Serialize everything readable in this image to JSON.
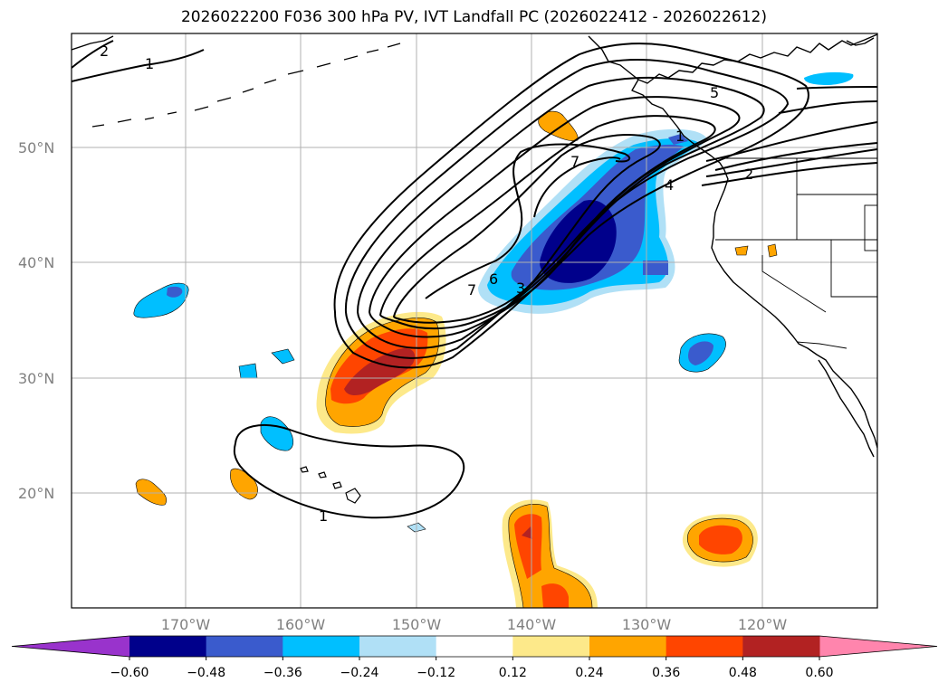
{
  "title": "2026022200 F036 300 hPa PV, IVT Landfall PC (2026022412 - 2026022612)",
  "map": {
    "projection": "PlateCarree",
    "lon_range": [
      -180,
      -110
    ],
    "lat_range": [
      10,
      60
    ],
    "gridlines": true,
    "lat_labels": [
      "50°N",
      "40°N",
      "30°N",
      "20°N"
    ],
    "lon_labels": [
      "170°W",
      "160°W",
      "150°W",
      "140°W",
      "130°W",
      "120°W"
    ]
  },
  "colorbar": {
    "orientation": "horizontal",
    "extend": "both",
    "levels": [
      -0.6,
      -0.48,
      -0.36,
      -0.24,
      -0.12,
      0.12,
      0.24,
      0.36,
      0.48,
      0.6
    ],
    "tick_labels": [
      "−0.60",
      "−0.48",
      "−0.36",
      "−0.24",
      "−0.12",
      "0.12",
      "0.24",
      "0.36",
      "0.48",
      "0.60"
    ],
    "colors": [
      "#9933cc",
      "#00008b",
      "#3a5bcd",
      "#00bfff",
      "#b0e0f6",
      "#ffffff",
      "#fde98a",
      "#ffa500",
      "#ff4500",
      "#b22222",
      "#ff85ad"
    ]
  },
  "contour_labels": [
    "2",
    "1",
    "5",
    "1",
    "7",
    "4",
    "2",
    "7",
    "6",
    "3",
    "1"
  ],
  "contour_color": "#000000",
  "coastline_color": "#000000"
}
